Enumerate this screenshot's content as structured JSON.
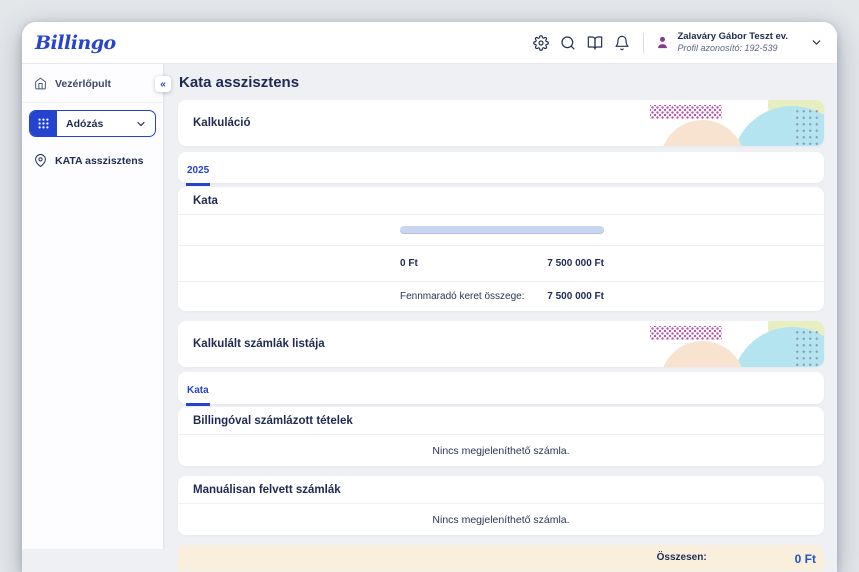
{
  "header": {
    "logo": "Billingo",
    "icons": [
      "settings-icon",
      "search-icon",
      "book-icon",
      "bell-icon"
    ],
    "user": {
      "name": "Zalaváry Gábor Teszt ev.",
      "profile_id": "Profil azonosító: 192-539"
    }
  },
  "sidebar": {
    "collapse_label": "«",
    "items": [
      {
        "label": "Vezérlőpult",
        "icon": "home-icon"
      },
      {
        "label": "Adózás",
        "icon": "grid-icon",
        "type": "dropdown"
      },
      {
        "label": "KATA asszisztens",
        "icon": "pin-icon"
      }
    ]
  },
  "main": {
    "title": "Kata asszisztens",
    "calculation_card": {
      "title": "Kalkuláció"
    },
    "year_tab": "2025",
    "kata_section": {
      "title": "Kata",
      "progress": {
        "used_label": "0 Ft",
        "limit_label": "7 500 000 Ft",
        "percent_used": 0
      },
      "remaining_label": "Fennmaradó keret összege:",
      "remaining_value": "7 500 000 Ft"
    },
    "list_card": {
      "title": "Kalkulált számlák listája"
    },
    "list_tab": "Kata",
    "billingo_invoices": {
      "title": "Billingóval számlázott tételek",
      "empty_message": "Nincs megjeleníthető számla."
    },
    "manual_invoices": {
      "title": "Manuálisan felvett számlák",
      "empty_message": "Nincs megjeleníthető számla."
    },
    "total": {
      "label": "Összesen:",
      "value": "0 Ft"
    }
  },
  "colors": {
    "accent_blue": "#2443cf",
    "brand_blue": "#2745cc",
    "navy_text": "#1e2a52",
    "avatar_purple": "#8a3a8d",
    "pattern_purple": "#b061a8",
    "pattern_cyan": "#b3e4ef",
    "pattern_peach": "#f8e3d1",
    "pattern_lime": "#e7eec0",
    "progress_track": "#c9d6f2",
    "total_bar_cream": "#f9efdc",
    "content_background": "#eef0f4"
  }
}
